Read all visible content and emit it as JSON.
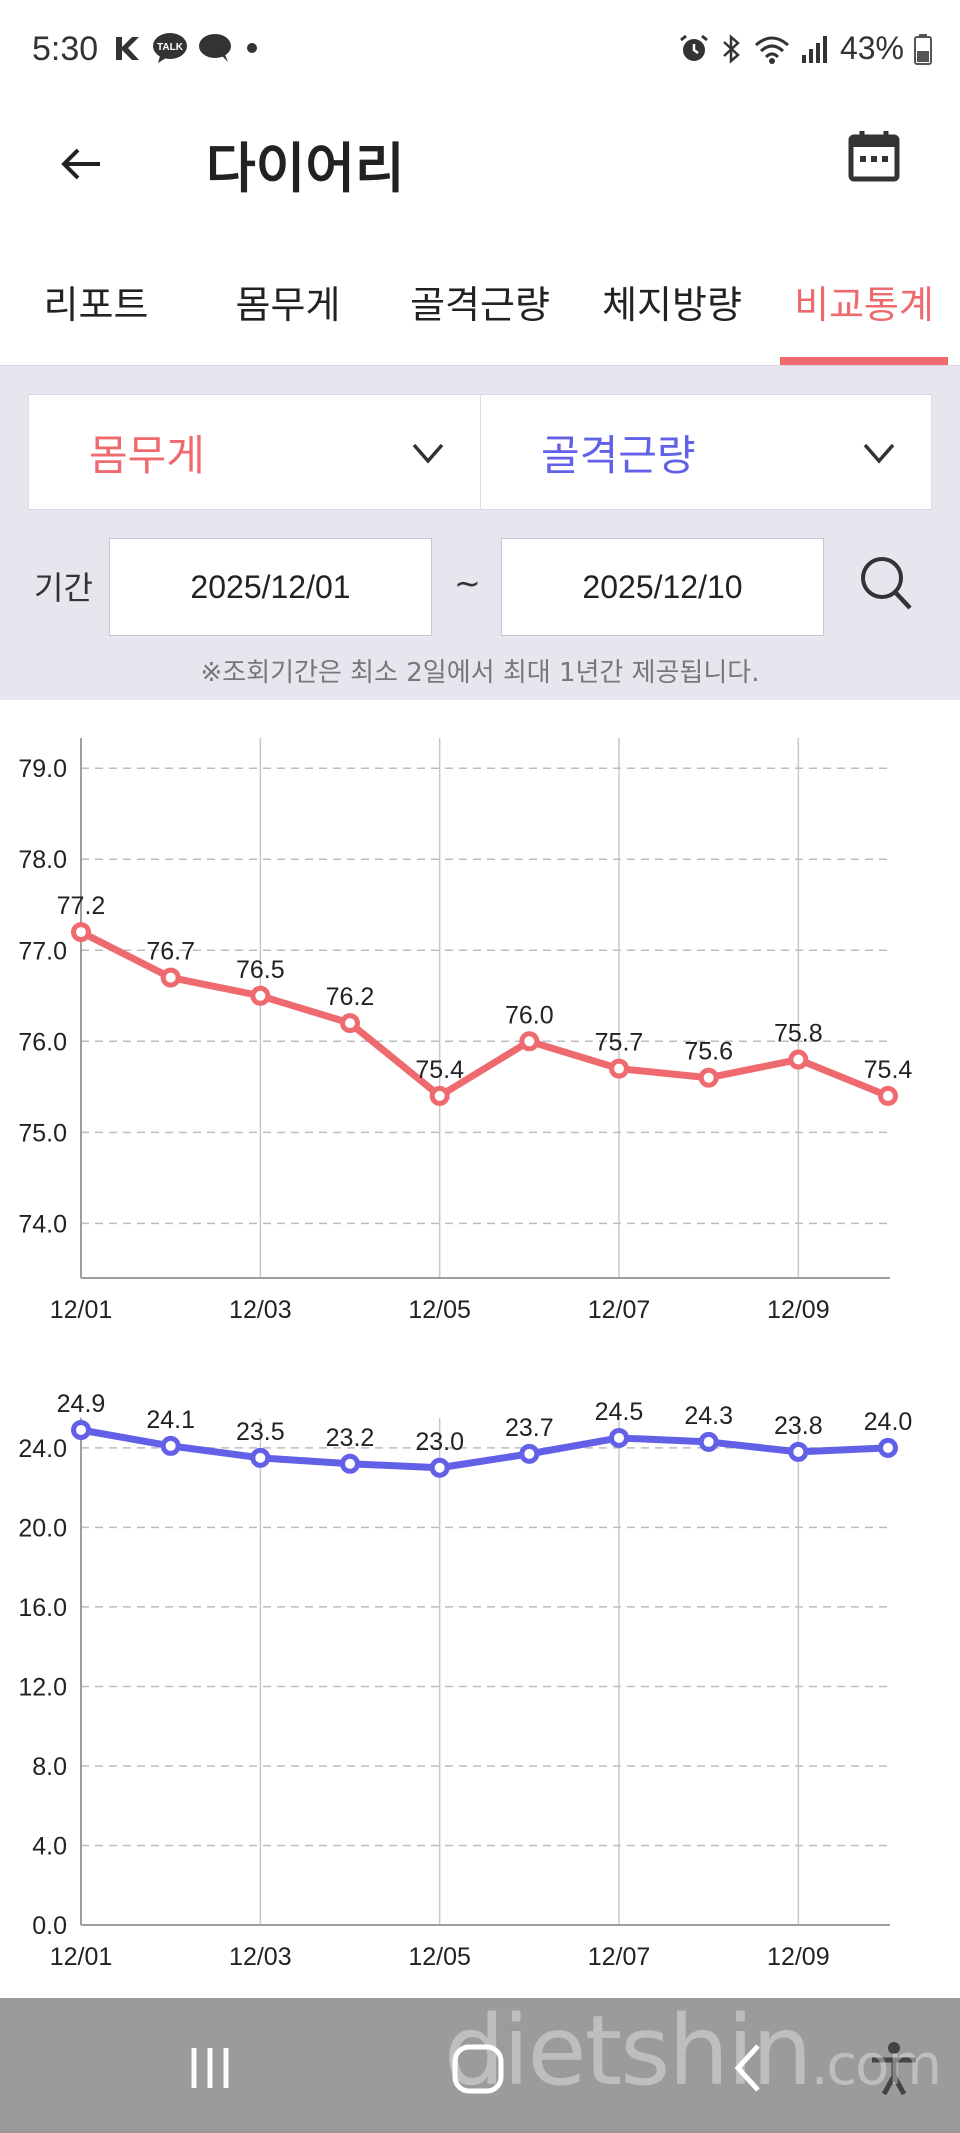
{
  "status_bar": {
    "time": "5:30",
    "battery": "43%",
    "left_icons": [
      "k-logo-icon",
      "kakaotalk-icon",
      "chat-bubble-icon",
      "dot-icon"
    ],
    "right_icons": [
      "alarm-icon",
      "bluetooth-icon",
      "wifi-icon",
      "signal-icon",
      "battery-icon"
    ],
    "talk_badge": "TALK"
  },
  "header": {
    "title": "다이어리",
    "back_icon": "back-arrow-icon",
    "calendar_icon": "calendar-icon"
  },
  "tabs": [
    {
      "label": "리포트",
      "active": false
    },
    {
      "label": "몸무게",
      "active": false
    },
    {
      "label": "골격근량",
      "active": false
    },
    {
      "label": "체지방량",
      "active": false
    },
    {
      "label": "비교통계",
      "active": true
    }
  ],
  "filters": {
    "select_left": "몸무게",
    "select_right": "골격근량",
    "period_label": "기간",
    "start_date": "2025/12/01",
    "separator": "~",
    "end_date": "2025/12/10",
    "notice": "※조회기간은 최소 2일에서 최대 1년간 제공됩니다."
  },
  "colors": {
    "accent_red": "#ee6a6e",
    "accent_blue": "#6260e6",
    "panel_bg": "#e8e5ef"
  },
  "chart_data": [
    {
      "type": "line",
      "series": [
        {
          "name": "몸무게",
          "color": "#ee6a6e",
          "values": [
            77.2,
            76.7,
            76.5,
            76.2,
            75.4,
            76.0,
            75.7,
            75.6,
            75.8,
            75.4
          ]
        }
      ],
      "x": [
        "12/01",
        "12/02",
        "12/03",
        "12/04",
        "12/05",
        "12/06",
        "12/07",
        "12/08",
        "12/09",
        "12/10"
      ],
      "x_tick_labels": [
        "12/01",
        "12/03",
        "12/05",
        "12/07",
        "12/09"
      ],
      "y_ticks": [
        "74.0",
        "75.0",
        "76.0",
        "77.0",
        "78.0",
        "79.0"
      ],
      "ylim": [
        73.4,
        79.2
      ],
      "value_labels": [
        "77.2",
        "76.7",
        "76.5",
        "76.2",
        "75.4",
        "76.0",
        "75.7",
        "75.6",
        "75.8",
        "75.4"
      ],
      "grid": true
    },
    {
      "type": "line",
      "series": [
        {
          "name": "골격근량",
          "color": "#6260e6",
          "values": [
            24.9,
            24.1,
            23.5,
            23.2,
            23.0,
            23.7,
            24.5,
            24.3,
            23.8,
            24.0
          ]
        }
      ],
      "x": [
        "12/01",
        "12/02",
        "12/03",
        "12/04",
        "12/05",
        "12/06",
        "12/07",
        "12/08",
        "12/09",
        "12/10"
      ],
      "x_tick_labels": [
        "12/01",
        "12/03",
        "12/05",
        "12/07",
        "12/09"
      ],
      "y_ticks": [
        "0.0",
        "4.0",
        "8.0",
        "12.0",
        "16.0",
        "20.0",
        "24.0"
      ],
      "ylim": [
        0,
        24.9
      ],
      "value_labels": [
        "24.9",
        "24.1",
        "23.5",
        "23.2",
        "23.0",
        "23.7",
        "24.5",
        "24.3",
        "23.8",
        "24.0"
      ],
      "grid": true
    }
  ],
  "nav_bar": {
    "icons": [
      "recent-apps-icon",
      "home-icon",
      "back-nav-icon",
      "accessibility-icon"
    ]
  },
  "watermark": {
    "main": "dietshin",
    "suffix": ".com"
  }
}
